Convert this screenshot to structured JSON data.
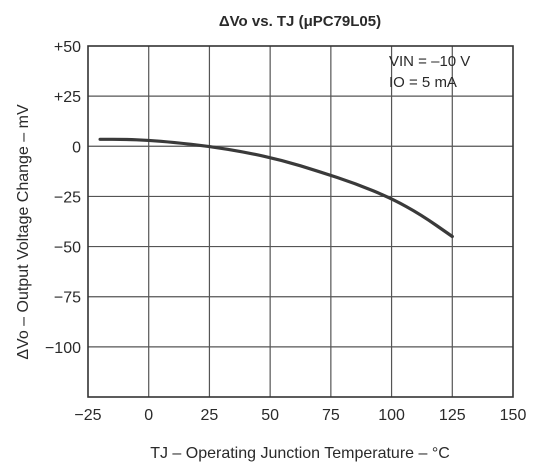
{
  "chart_data": {
    "type": "line",
    "title": "ΔVo  vs.  TJ (μPC79L05)",
    "xlabel": "TJ – Operating Junction Temperature – °C",
    "ylabel": "ΔVo – Output Voltage Change – mV",
    "xlim": [
      -25,
      150
    ],
    "ylim": [
      -125,
      50
    ],
    "x_ticks": [
      -25,
      0,
      25,
      50,
      75,
      100,
      125,
      150
    ],
    "x_tick_labels": [
      "−25",
      "0",
      "25",
      "50",
      "75",
      "100",
      "125",
      "150"
    ],
    "y_ticks": [
      50,
      25,
      0,
      -25,
      -50,
      -75,
      -100
    ],
    "y_tick_labels": [
      "+50",
      "+25",
      "0",
      "−25",
      "−50",
      "−75",
      "−100"
    ],
    "grid": true,
    "conditions": [
      "VIN = –10 V",
      "IO = 5 mA"
    ],
    "series": [
      {
        "color": "#3a3a3a",
        "x": [
          -20,
          -10,
          0,
          10,
          25,
          40,
          55,
          70,
          85,
          100,
          112,
          125
        ],
        "y": [
          3.5,
          3.5,
          3,
          2,
          0,
          -3,
          -7,
          -12.5,
          -18.5,
          -26,
          -34,
          -45
        ]
      }
    ]
  }
}
